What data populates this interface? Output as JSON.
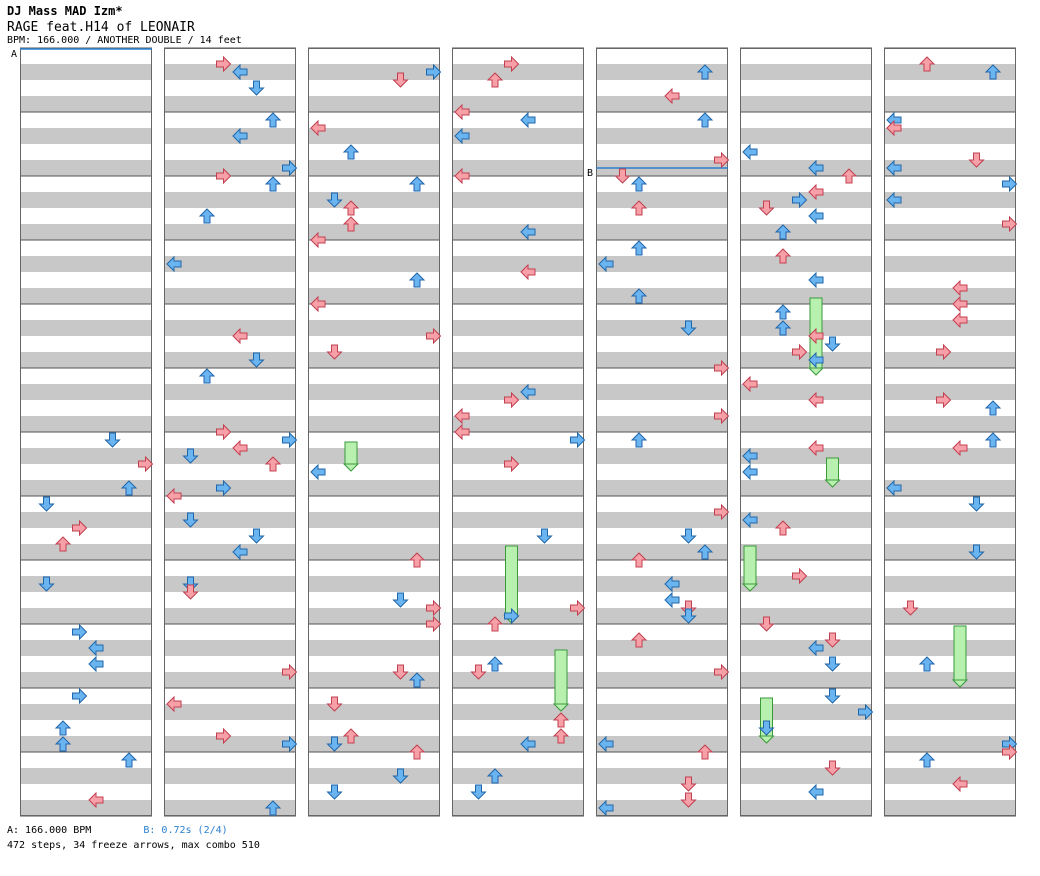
{
  "header": {
    "artist": "DJ Mass MAD Izm*",
    "title": "RAGE feat.H14 of LEONAIR",
    "info": "BPM: 166.000 / ANOTHER DOUBLE / 14 feet"
  },
  "footer": {
    "bpm_a": "A: 166.000 BPM",
    "bpm_b": "B: 0.72s (2/4)",
    "summary": "472 steps, 34 freeze arrows, max combo 510"
  },
  "markers": {
    "a": "A",
    "b": "B"
  },
  "colors": {
    "stripe": "#c8c8c8",
    "red_arrow": "#f7a0a8",
    "blue_arrow": "#6ab4f0",
    "pink_arrow": "#f2a0f0",
    "freeze": "#b8f0b0",
    "bpm_line": "#2a7fd0"
  },
  "icons": [
    "left-arrow-icon",
    "down-arrow-icon",
    "up-arrow-icon",
    "right-arrow-icon",
    "freeze-arrow-icon"
  ]
}
